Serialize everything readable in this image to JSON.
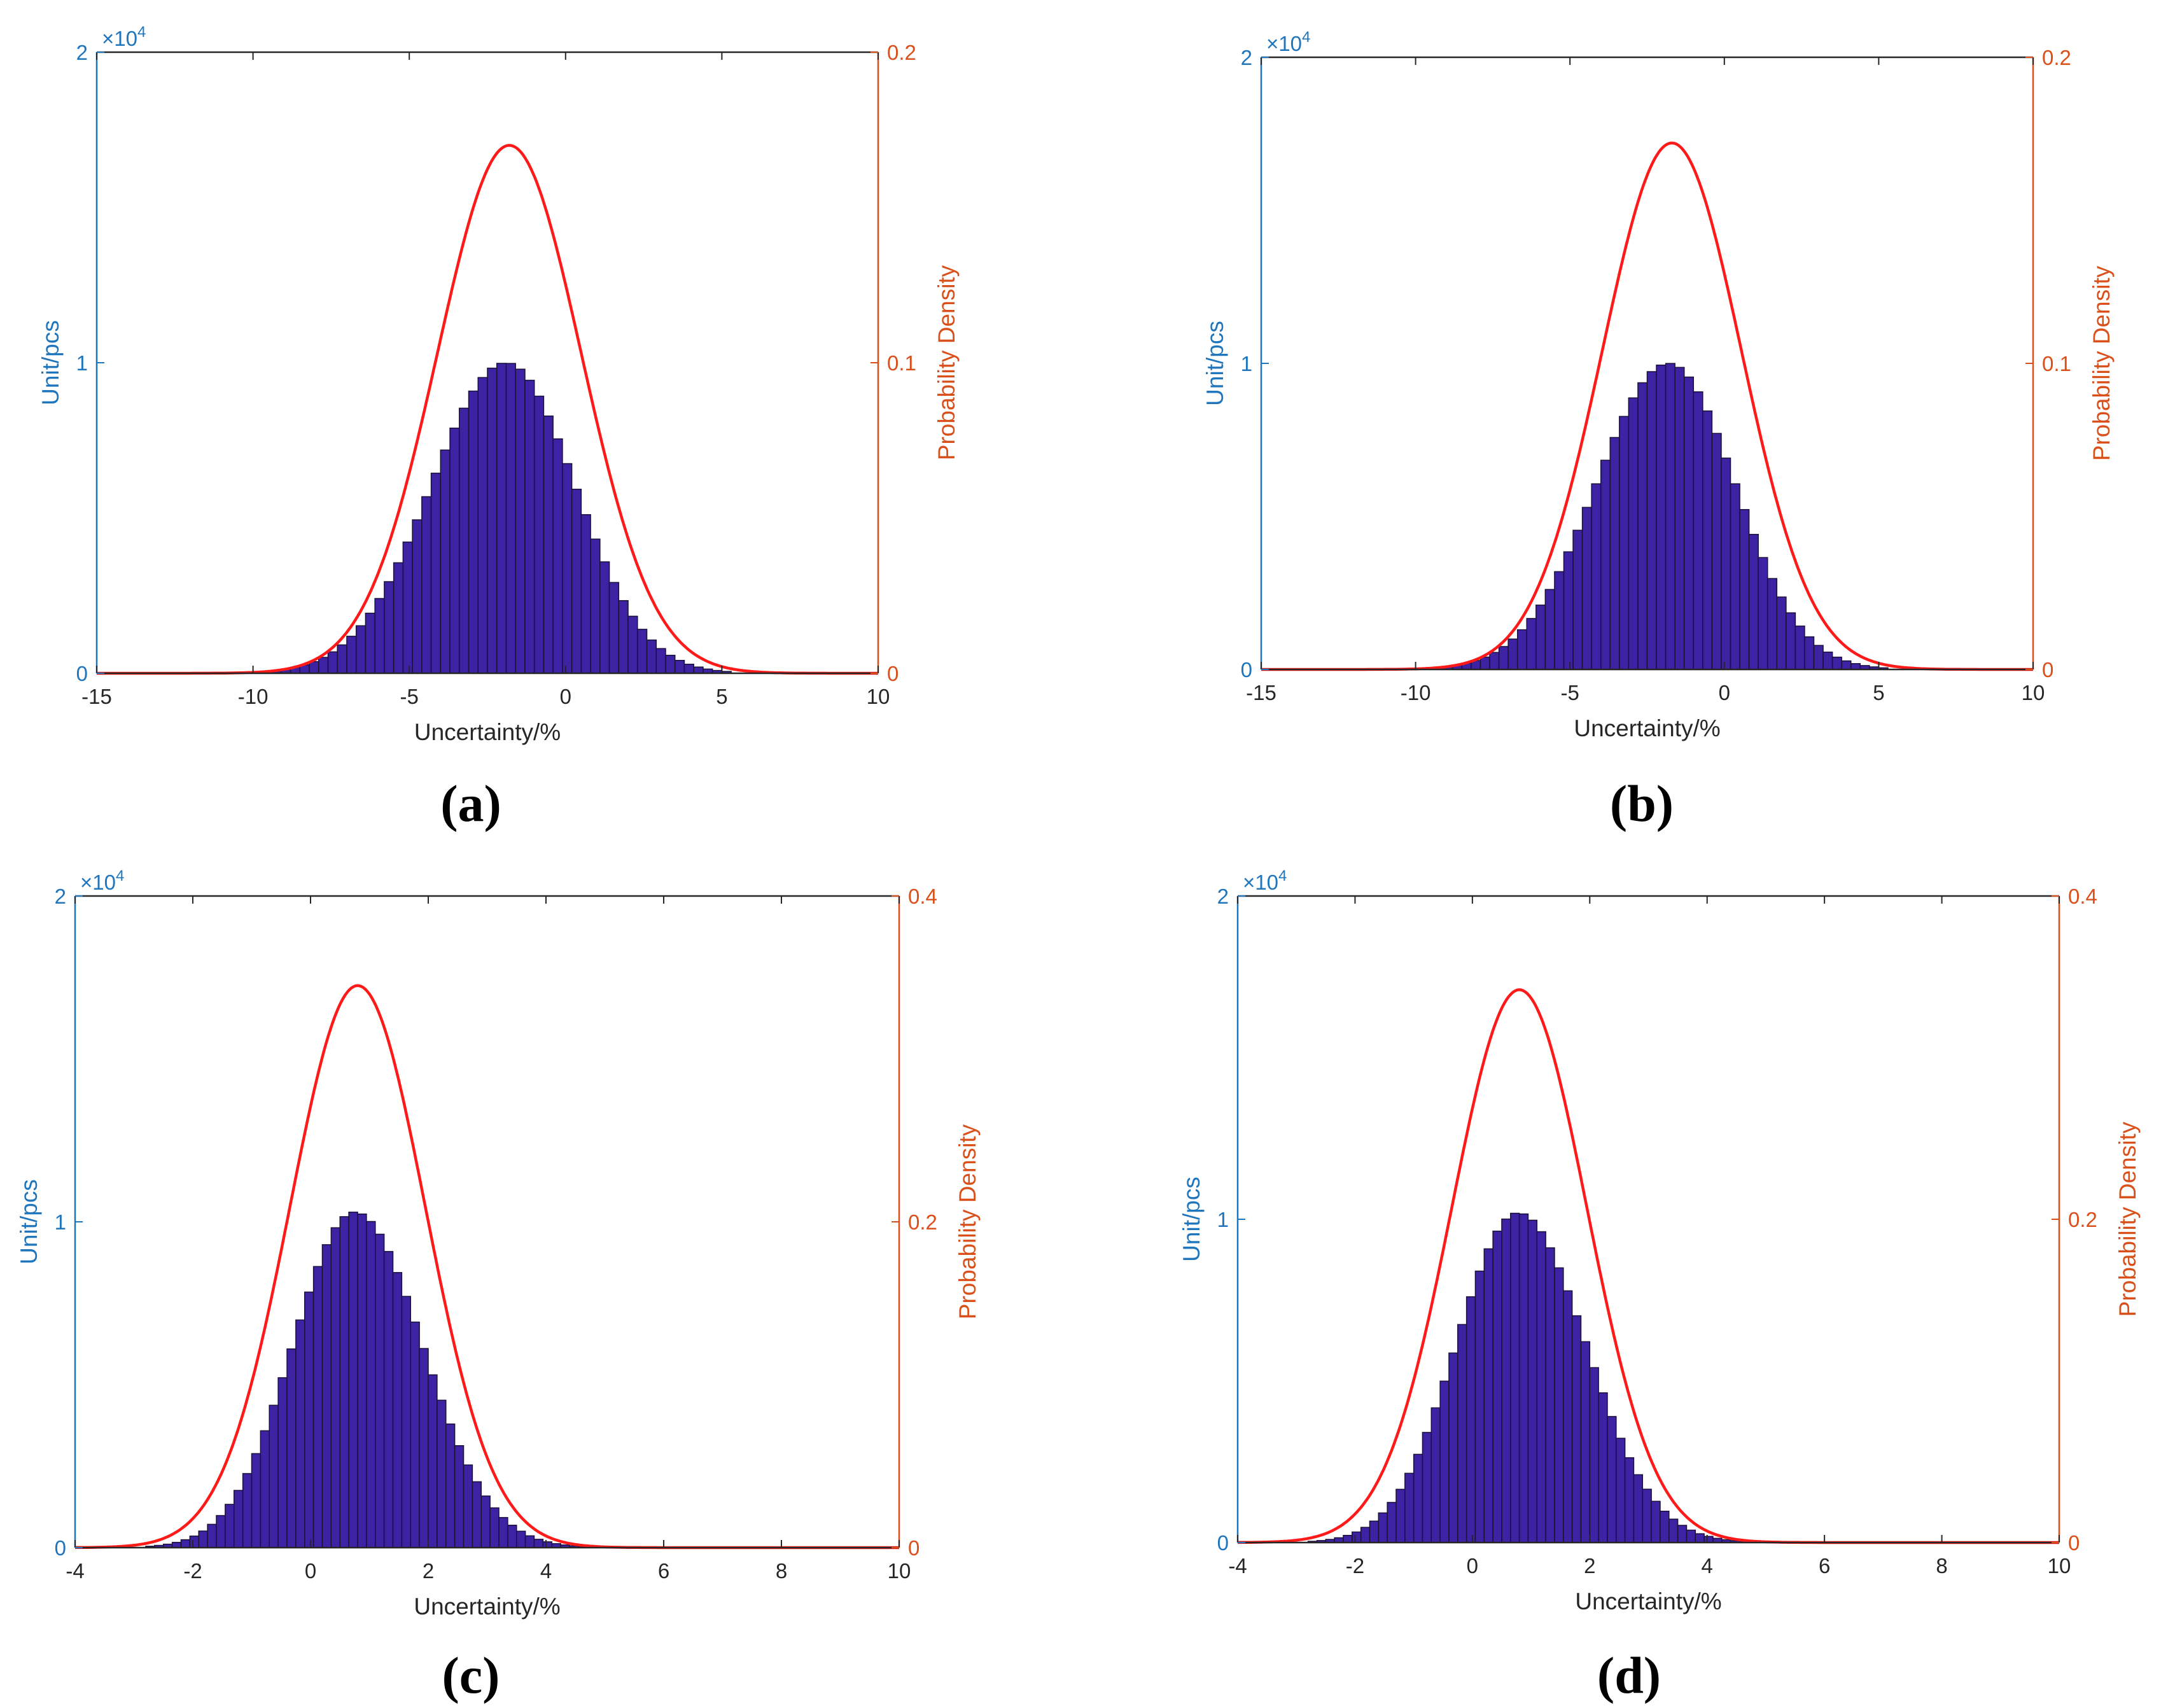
{
  "colors": {
    "left_axis": "#1f76bd",
    "right_axis": "#d9501a",
    "bar_fill": "#3d22a3",
    "bar_edge": "#1a1038",
    "curve": "#ff1a1a",
    "axis_box": "#262626"
  },
  "chart_data": [
    {
      "id": "a",
      "panel_label": "(a)",
      "type": "bar+line",
      "xlabel": "Uncertainty/%",
      "ylabel_left": "Unit/pcs",
      "ylabel_right": "Probability Density",
      "exponent_label": "×10",
      "exponent_power": "4",
      "xlim": [
        -15,
        10
      ],
      "x_ticks": [
        "-15",
        "-10",
        "-5",
        "0",
        "5",
        "10"
      ],
      "ylim_left": [
        0,
        2
      ],
      "y_left_ticks": [
        "0",
        "1",
        "2"
      ],
      "ylim_right": [
        0,
        0.2
      ],
      "y_right_ticks": [
        "0",
        "0.1",
        "0.2"
      ],
      "histogram": {
        "bin_start": -10,
        "bin_width": 0.3,
        "count_peak": 1.0,
        "mu": -1.9,
        "sigma_left": 2.4,
        "sigma_right": 2.2,
        "x_min": -10,
        "x_max": 5.2
      },
      "density_curve": {
        "peak": 0.17,
        "mu": -1.8,
        "sigma": 2.3,
        "x_range": [
          -15,
          10
        ]
      }
    },
    {
      "id": "b",
      "panel_label": "(b)",
      "type": "bar+line",
      "xlabel": "Uncertainty/%",
      "ylabel_left": "Unit/pcs",
      "ylabel_right": "Probability Density",
      "exponent_label": "×10",
      "exponent_power": "4",
      "xlim": [
        -15,
        10
      ],
      "x_ticks": [
        "-15",
        "-10",
        "-5",
        "0",
        "5",
        "10"
      ],
      "ylim_left": [
        0,
        2
      ],
      "y_left_ticks": [
        "0",
        "1",
        "2"
      ],
      "ylim_right": [
        0,
        0.2
      ],
      "y_right_ticks": [
        "0",
        "0.1",
        "0.2"
      ],
      "histogram": {
        "bin_start": -10,
        "bin_width": 0.3,
        "count_peak": 1.0,
        "mu": -1.8,
        "sigma_left": 2.35,
        "sigma_right": 2.15,
        "x_min": -10,
        "x_max": 5.2
      },
      "density_curve": {
        "peak": 0.172,
        "mu": -1.7,
        "sigma": 2.25,
        "x_range": [
          -15,
          10
        ]
      }
    },
    {
      "id": "c",
      "panel_label": "(c)",
      "type": "bar+line",
      "xlabel": "Uncertainty/%",
      "ylabel_left": "Unit/pcs",
      "ylabel_right": "Probability Density",
      "exponent_label": "×10",
      "exponent_power": "4",
      "xlim": [
        -4,
        10
      ],
      "x_ticks": [
        "-4",
        "-2",
        "0",
        "2",
        "4",
        "6",
        "8",
        "10"
      ],
      "ylim_left": [
        0,
        2
      ],
      "y_left_ticks": [
        "0",
        "1",
        "2"
      ],
      "ylim_right": [
        0,
        0.4
      ],
      "y_right_ticks": [
        "0",
        "0.2",
        "0.4"
      ],
      "histogram": {
        "bin_start": -2.8,
        "bin_width": 0.15,
        "count_peak": 1.03,
        "mu": 0.75,
        "sigma_left": 1.05,
        "sigma_right": 1.15,
        "x_min": -2.8,
        "x_max": 4.6
      },
      "density_curve": {
        "peak": 0.345,
        "mu": 0.8,
        "sigma": 1.15,
        "x_range": [
          -4,
          10
        ]
      }
    },
    {
      "id": "d",
      "panel_label": "(d)",
      "type": "bar+line",
      "xlabel": "Uncertainty/%",
      "ylabel_left": "Unit/pcs",
      "ylabel_right": "Probability Density",
      "exponent_label": "×10",
      "exponent_power": "4",
      "xlim": [
        -4,
        10
      ],
      "x_ticks": [
        "-4",
        "-2",
        "0",
        "2",
        "4",
        "6",
        "8",
        "10"
      ],
      "ylim_left": [
        0,
        2
      ],
      "y_left_ticks": [
        "0",
        "1",
        "2"
      ],
      "ylim_right": [
        0,
        0.4
      ],
      "y_right_ticks": [
        "0",
        "0.2",
        "0.4"
      ],
      "histogram": {
        "bin_start": -2.8,
        "bin_width": 0.15,
        "count_peak": 1.02,
        "mu": 0.78,
        "sigma_left": 1.05,
        "sigma_right": 1.15,
        "x_min": -2.8,
        "x_max": 4.6
      },
      "density_curve": {
        "peak": 0.342,
        "mu": 0.8,
        "sigma": 1.15,
        "x_range": [
          -4,
          10
        ]
      }
    }
  ]
}
